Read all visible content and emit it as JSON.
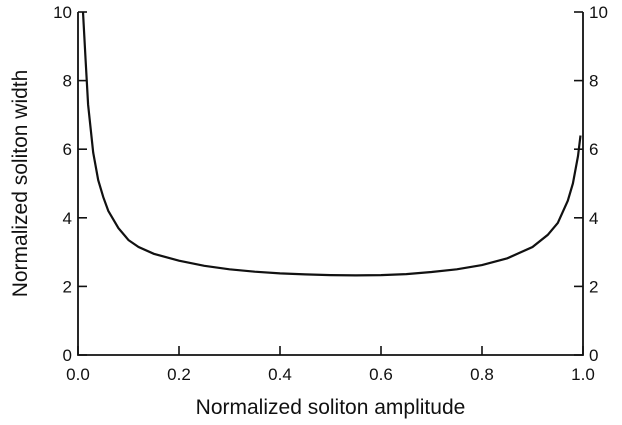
{
  "chart_data": {
    "type": "line",
    "title": "",
    "xlabel": "Normalized soliton amplitude",
    "ylabel": "Normalized soliton width",
    "xlim": [
      0.0,
      1.0
    ],
    "ylim": [
      0,
      10
    ],
    "x_ticks": [
      0.0,
      0.2,
      0.4,
      0.6,
      0.8,
      1.0
    ],
    "x_tick_labels": [
      "0.0",
      "0.2",
      "0.4",
      "0.6",
      "0.8",
      "1.0"
    ],
    "y_ticks": [
      0,
      2,
      4,
      6,
      8,
      10
    ],
    "y_tick_labels": [
      "0",
      "2",
      "4",
      "6",
      "8",
      "10"
    ],
    "right_y_tick_labels": [
      "0",
      "2",
      "4",
      "6",
      "8",
      "10"
    ],
    "grid": false,
    "legend": "none",
    "series": [
      {
        "x": [
          0.01,
          0.015,
          0.02,
          0.03,
          0.04,
          0.05,
          0.06,
          0.08,
          0.1,
          0.12,
          0.15,
          0.2,
          0.25,
          0.3,
          0.35,
          0.4,
          0.45,
          0.5,
          0.55,
          0.6,
          0.65,
          0.7,
          0.75,
          0.8,
          0.85,
          0.9,
          0.93,
          0.95,
          0.97,
          0.98,
          0.99,
          0.995
        ],
        "y": [
          10.0,
          8.6,
          7.3,
          5.9,
          5.1,
          4.6,
          4.2,
          3.7,
          3.35,
          3.15,
          2.95,
          2.75,
          2.6,
          2.5,
          2.43,
          2.38,
          2.35,
          2.33,
          2.32,
          2.33,
          2.36,
          2.42,
          2.5,
          2.62,
          2.82,
          3.15,
          3.5,
          3.85,
          4.5,
          5.0,
          5.8,
          6.4
        ]
      }
    ]
  }
}
